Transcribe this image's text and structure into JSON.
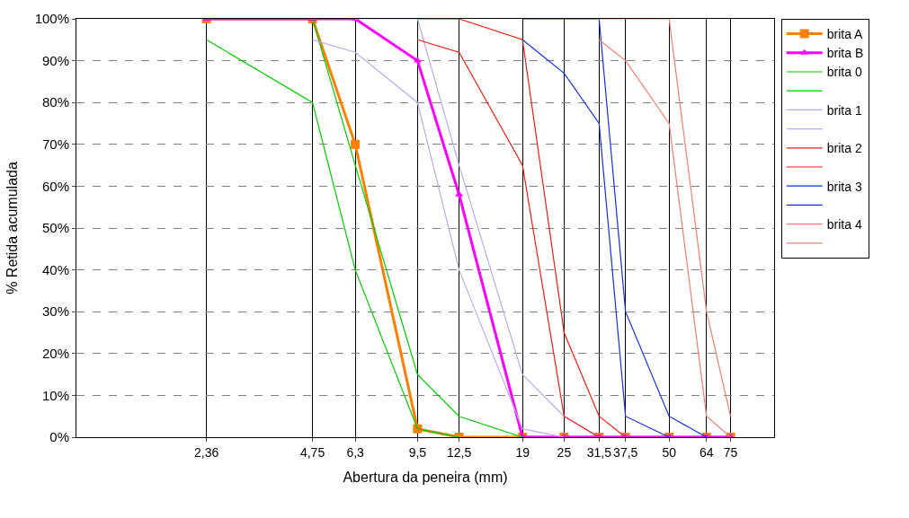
{
  "chart_data": {
    "type": "line",
    "xlabel": "Abertura da peneira (mm)",
    "ylabel": "% Retida acumulada",
    "log": "x",
    "xlim": [
      1,
      100
    ],
    "xticks": [
      {
        "value": 2.36,
        "label": "2,36"
      },
      {
        "value": 4.75,
        "label": "4,75"
      },
      {
        "value": 6.3,
        "label": "6,3"
      },
      {
        "value": 9.5,
        "label": "9,5"
      },
      {
        "value": 12.5,
        "label": "12,5"
      },
      19,
      25,
      {
        "value": 31.5,
        "label": "31,5"
      },
      {
        "value": 37.5,
        "label": "37,5"
      },
      50,
      64,
      75
    ],
    "ylim": [
      0,
      100
    ],
    "yticks": [
      {
        "value": 0,
        "label": "0%"
      },
      {
        "value": 10,
        "label": "10%"
      },
      {
        "value": 20,
        "label": "20%"
      },
      {
        "value": 30,
        "label": "30%"
      },
      {
        "value": 40,
        "label": "40%"
      },
      {
        "value": 50,
        "label": "50%"
      },
      {
        "value": 60,
        "label": "60%"
      },
      {
        "value": 70,
        "label": "70%"
      },
      {
        "value": 80,
        "label": "80%"
      },
      {
        "value": 90,
        "label": "90%"
      },
      {
        "value": 100,
        "label": "100%"
      }
    ],
    "grid": true,
    "legend": "right",
    "series": [
      {
        "name": "brita A",
        "color": "#ff7f00",
        "marker": "square",
        "x": [
          2.36,
          4.75,
          6.3,
          9.5,
          12.5,
          19,
          25,
          31.5,
          37.5,
          50,
          64,
          75
        ],
        "values": [
          100,
          100,
          70,
          2,
          0,
          0,
          0,
          0,
          0,
          0,
          0,
          0
        ]
      },
      {
        "name": "brita B",
        "color": "#ff00ff",
        "marker": "triangle",
        "x": [
          2.36,
          4.75,
          6.3,
          9.5,
          12.5,
          19,
          25,
          31.5,
          37.5,
          50,
          64,
          75
        ],
        "values": [
          100,
          100,
          100,
          90,
          58,
          0,
          0,
          0,
          0,
          0,
          0,
          0
        ]
      },
      {
        "name": "brita 0",
        "color": "#00cc00",
        "marker": "none",
        "x": [
          2.36,
          4.75,
          6.3,
          9.5,
          12.5
        ],
        "values": [
          95,
          80,
          40,
          2,
          0
        ]
      },
      {
        "color": "#00cc00",
        "marker": "none",
        "x": [
          4.75,
          6.3,
          9.5,
          12.5,
          19
        ],
        "values": [
          100,
          65,
          15,
          5,
          0
        ]
      },
      {
        "name": "brita 1",
        "color": "#c0a8f0",
        "marker": "none",
        "x": [
          4.75,
          6.3,
          9.5,
          12.5,
          19,
          25
        ],
        "values": [
          95,
          92,
          80,
          40,
          2,
          0
        ]
      },
      {
        "color": "#c0a8f0",
        "marker": "none",
        "x": [
          6.3,
          9.5,
          12.5,
          19,
          25,
          31.5
        ],
        "values": [
          100,
          100,
          65,
          15,
          5,
          0
        ]
      },
      {
        "name": "brita 2",
        "color": "#ee2010",
        "marker": "none",
        "x": [
          9.5,
          12.5,
          19,
          25,
          31.5
        ],
        "values": [
          95,
          92,
          65,
          5,
          0
        ]
      },
      {
        "color": "#ee2010",
        "marker": "none",
        "x": [
          9.5,
          12.5,
          19,
          25,
          31.5,
          37.5
        ],
        "values": [
          100,
          100,
          95,
          25,
          5,
          0
        ]
      },
      {
        "name": "brita 3",
        "color": "#1030e0",
        "marker": "none",
        "x": [
          19,
          25,
          31.5,
          37.5,
          50
        ],
        "values": [
          95,
          87,
          75,
          5,
          0
        ]
      },
      {
        "color": "#1030e0",
        "marker": "none",
        "x": [
          19,
          25,
          31.5,
          37.5,
          50,
          64
        ],
        "values": [
          100,
          100,
          100,
          30,
          5,
          0
        ]
      },
      {
        "name": "brita 4",
        "color": "#f08070",
        "marker": "none",
        "x": [
          31.5,
          37.5,
          50,
          64,
          75
        ],
        "values": [
          95,
          90,
          75,
          5,
          0
        ]
      },
      {
        "color": "#f08070",
        "marker": "none",
        "x": [
          31.5,
          37.5,
          50,
          64,
          75
        ],
        "values": [
          100,
          100,
          100,
          30,
          5
        ]
      }
    ]
  }
}
